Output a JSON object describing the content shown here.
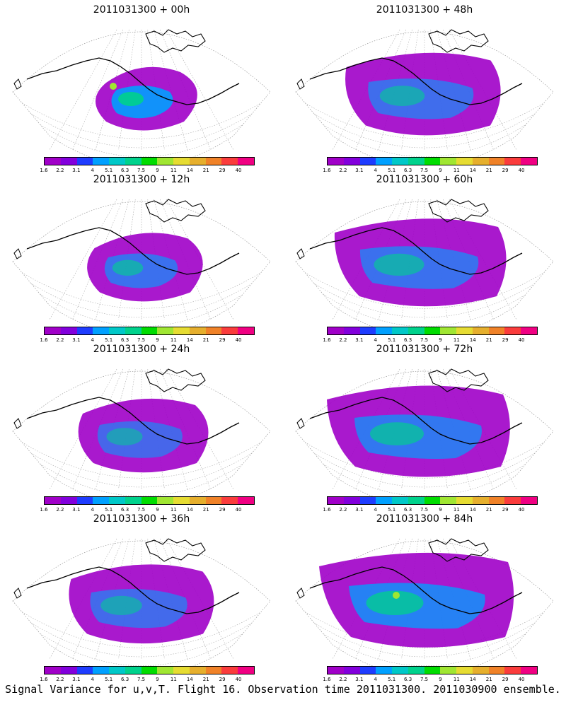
{
  "colorbar": {
    "colors": [
      "#a000c8",
      "#8200dc",
      "#1e3cff",
      "#00a0ff",
      "#00c8c8",
      "#00d28c",
      "#00dc00",
      "#a0e632",
      "#e6dc32",
      "#e6af2d",
      "#f08228",
      "#fa3c3c",
      "#f00082"
    ],
    "ticks": [
      "1.6",
      "2.2",
      "3.1",
      "4",
      "5.1",
      "6.3",
      "7.5",
      "9",
      "11",
      "14",
      "21",
      "29",
      "40"
    ]
  },
  "panels": [
    {
      "title": "2011031300 + 00h",
      "spread": 0.0,
      "intensity": 1.0
    },
    {
      "title": "2011031300 + 48h",
      "spread": 0.55,
      "intensity": 0.45
    },
    {
      "title": "2011031300 + 12h",
      "spread": 0.15,
      "intensity": 0.5
    },
    {
      "title": "2011031300 + 60h",
      "spread": 0.7,
      "intensity": 0.5
    },
    {
      "title": "2011031300 + 24h",
      "spread": 0.3,
      "intensity": 0.35
    },
    {
      "title": "2011031300 + 72h",
      "spread": 0.8,
      "intensity": 0.6
    },
    {
      "title": "2011031300 + 36h",
      "spread": 0.45,
      "intensity": 0.4
    },
    {
      "title": "2011031300 + 84h",
      "spread": 0.9,
      "intensity": 0.75
    }
  ],
  "caption": "Signal Variance for u,v,T. Flight 16. Observation time 2011031300. 2011030900 ensemble."
}
